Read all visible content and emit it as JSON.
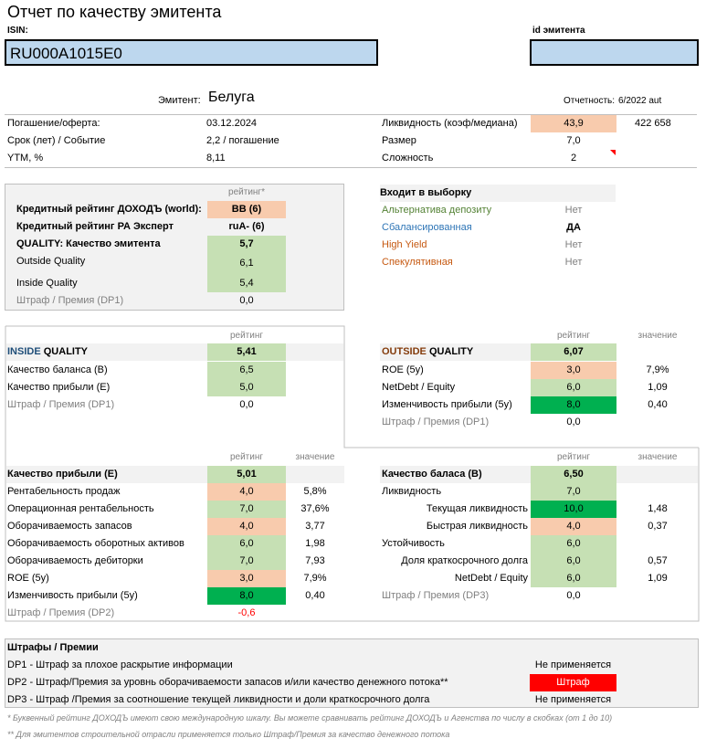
{
  "header": {
    "title": "Отчет по качеству эмитента",
    "isin_label": "ISIN:",
    "isin_value": "RU000A1015E0",
    "id_label": "id эмитента",
    "id_value": "",
    "emitter_label": "Эмитент:",
    "emitter_value": "Белуга",
    "report_label": "Отчетность:",
    "report_value": "6/2022 aut"
  },
  "info_left": [
    {
      "label": "Погашение/оферта:",
      "value": "03.12.2024"
    },
    {
      "label": "Срок (лет) / Событие",
      "value": "2,2 / погашение"
    },
    {
      "label": "YTM, %",
      "value": "8,11"
    }
  ],
  "info_right": [
    {
      "label": "Ликвидность (коэф/медиана)",
      "value": "43,9",
      "extra": "422 658"
    },
    {
      "label": "Размер",
      "value": "7,0",
      "extra": ""
    },
    {
      "label": "Сложность",
      "value": "2",
      "extra": ""
    }
  ],
  "rating_block": {
    "col_header": "рейтинг*",
    "rows": [
      {
        "label": "Кредитный рейтинг ДОХОДЪ (world):",
        "value": "BB (6)"
      },
      {
        "label": "Кредитный рейтинг РА Эксперт",
        "value": "ruA- (6)"
      },
      {
        "label": "QUALITY: Качество эмитента",
        "value": "5,7"
      },
      {
        "label": "Outside Quality",
        "value": "6,1"
      },
      {
        "label": "Inside Quality",
        "value": "5,4"
      },
      {
        "label": "Штраф / Премия (DP1)",
        "value": "0,0"
      }
    ]
  },
  "selection": {
    "title": "Входит в выборку",
    "rows": [
      {
        "label": "Альтернатива депозиту",
        "value": "Нет",
        "color": "#548235"
      },
      {
        "label": "Сбалансированная",
        "value": "ДА",
        "color": "#2e75b6"
      },
      {
        "label": "High Yield",
        "value": "Нет",
        "color": "#c65911"
      },
      {
        "label": "Спекулятивная",
        "value": "Нет",
        "color": "#c65911"
      }
    ]
  },
  "inside": {
    "col_header": "рейтинг",
    "title_a": "INSIDE",
    "title_b": " QUALITY",
    "total": "5,41",
    "rows": [
      {
        "label": "Качество баланса (B)",
        "value": "6,5"
      },
      {
        "label": "Качество прибыли (E)",
        "value": "5,0"
      },
      {
        "label": "Штраф / Премия (DP1)",
        "value": "0,0"
      }
    ]
  },
  "outside": {
    "col_header": "рейтинг",
    "col_header2": "значение",
    "title_a": "OUTSIDE",
    "title_b": " QUALITY",
    "total": "6,07",
    "rows": [
      {
        "label": "ROE (5y)",
        "value": "3,0",
        "extra": "7,9%"
      },
      {
        "label": "NetDebt / Equity",
        "value": "6,0",
        "extra": "1,09"
      },
      {
        "label": "Изменчивость прибыли (5y)",
        "value": "8,0",
        "extra": "0,40"
      },
      {
        "label": "Штраф / Премия (DP1)",
        "value": "0,0",
        "extra": ""
      }
    ]
  },
  "profit": {
    "col_header": "рейтинг",
    "col_header2": "значение",
    "title": "Качество прибыли (E)",
    "total": "5,01",
    "rows": [
      {
        "label": "Рентабельность продаж",
        "value": "4,0",
        "extra": "5,8%"
      },
      {
        "label": "Операционная рентабельность",
        "value": "7,0",
        "extra": "37,6%"
      },
      {
        "label": "Оборачиваемость запасов",
        "value": "4,0",
        "extra": "3,77"
      },
      {
        "label": "Оборачиваемость оборотных активов",
        "value": "6,0",
        "extra": "1,98"
      },
      {
        "label": "Оборачиваемость дебиторки",
        "value": "7,0",
        "extra": "7,93"
      },
      {
        "label": "ROE (5y)",
        "value": "3,0",
        "extra": "7,9%"
      },
      {
        "label": "Изменчивость прибыли (5y)",
        "value": "8,0",
        "extra": "0,40"
      },
      {
        "label": "Штраф / Премия (DP2)",
        "value": "-0,6",
        "extra": ""
      }
    ]
  },
  "balance": {
    "col_header": "рейтинг",
    "col_header2": "значение",
    "title": "Качество баласа (B)",
    "total": "6,50",
    "rows": [
      {
        "label": "Ликвидность",
        "value": "7,0",
        "extra": ""
      },
      {
        "label": "Текущая ликвидность",
        "value": "10,0",
        "extra": "1,48"
      },
      {
        "label": "Быстрая ликвидность",
        "value": "4,0",
        "extra": "0,37"
      },
      {
        "label": "Устойчивость",
        "value": "6,0",
        "extra": ""
      },
      {
        "label": "Доля краткосрочного долга",
        "value": "6,0",
        "extra": "0,57"
      },
      {
        "label": "NetDebt / Equity",
        "value": "6,0",
        "extra": "1,09"
      },
      {
        "label": "Штраф / Премия (DP3)",
        "value": "0,0",
        "extra": ""
      }
    ]
  },
  "penalties": {
    "title": "Штрафы / Премии",
    "rows": [
      {
        "label": "DP1 - Штраф за плохое раскрытие информации",
        "value": "Не применяется"
      },
      {
        "label": "DP2 - Штраф/Премия за уровнь оборачиваемости запасов и/или качество денежного потока**",
        "value": "Штраф"
      },
      {
        "label": "DP3 - Штраф /Премия за соотношение текущей ликвидности и доли краткосрочного долга",
        "value": "Не применяется"
      }
    ]
  },
  "footnotes": [
    "* Буквенный рейтинг ДОХОДЪ имеют свою международную шкалу. Вы можете сравнивать рейтинг ДОХОДЪ и Агенства по числу в скобках (от 1 до 10)",
    "** Для эмитентов строительной отрасли применяется только Штраф/Премия за качество денежного потока"
  ]
}
